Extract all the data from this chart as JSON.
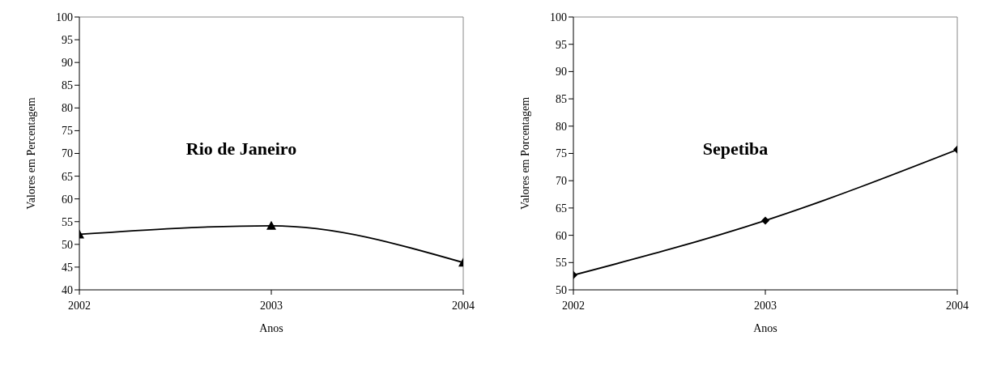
{
  "chart_data": [
    {
      "type": "line",
      "title": "Rio de Janeiro",
      "xlabel": "Anos",
      "ylabel": "Valores em Percentagem",
      "x": [
        2002,
        2003,
        2004
      ],
      "series": [
        {
          "color": "#000000",
          "values": [
            52.2,
            54.1,
            46.0
          ]
        }
      ],
      "xlim": [
        2002,
        2004
      ],
      "xticks": [
        2002,
        2003,
        2004
      ],
      "ylim": [
        40,
        100
      ],
      "yticks": [
        40,
        45,
        50,
        55,
        60,
        65,
        70,
        75,
        80,
        85,
        90,
        95,
        100
      ],
      "marker": "triangle",
      "grid": false,
      "legend": false
    },
    {
      "type": "line",
      "title": "Sepetiba",
      "xlabel": "Anos",
      "ylabel": "Valores em Porcentagem",
      "x": [
        2002,
        2003,
        2004
      ],
      "series": [
        {
          "color": "#000000",
          "values": [
            52.7,
            62.7,
            75.7
          ]
        }
      ],
      "xlim": [
        2002,
        2004
      ],
      "xticks": [
        2002,
        2003,
        2004
      ],
      "ylim": [
        50,
        100
      ],
      "yticks": [
        50,
        55,
        60,
        65,
        70,
        75,
        80,
        85,
        90,
        95,
        100
      ],
      "marker": "diamond",
      "grid": false,
      "legend": false
    }
  ]
}
